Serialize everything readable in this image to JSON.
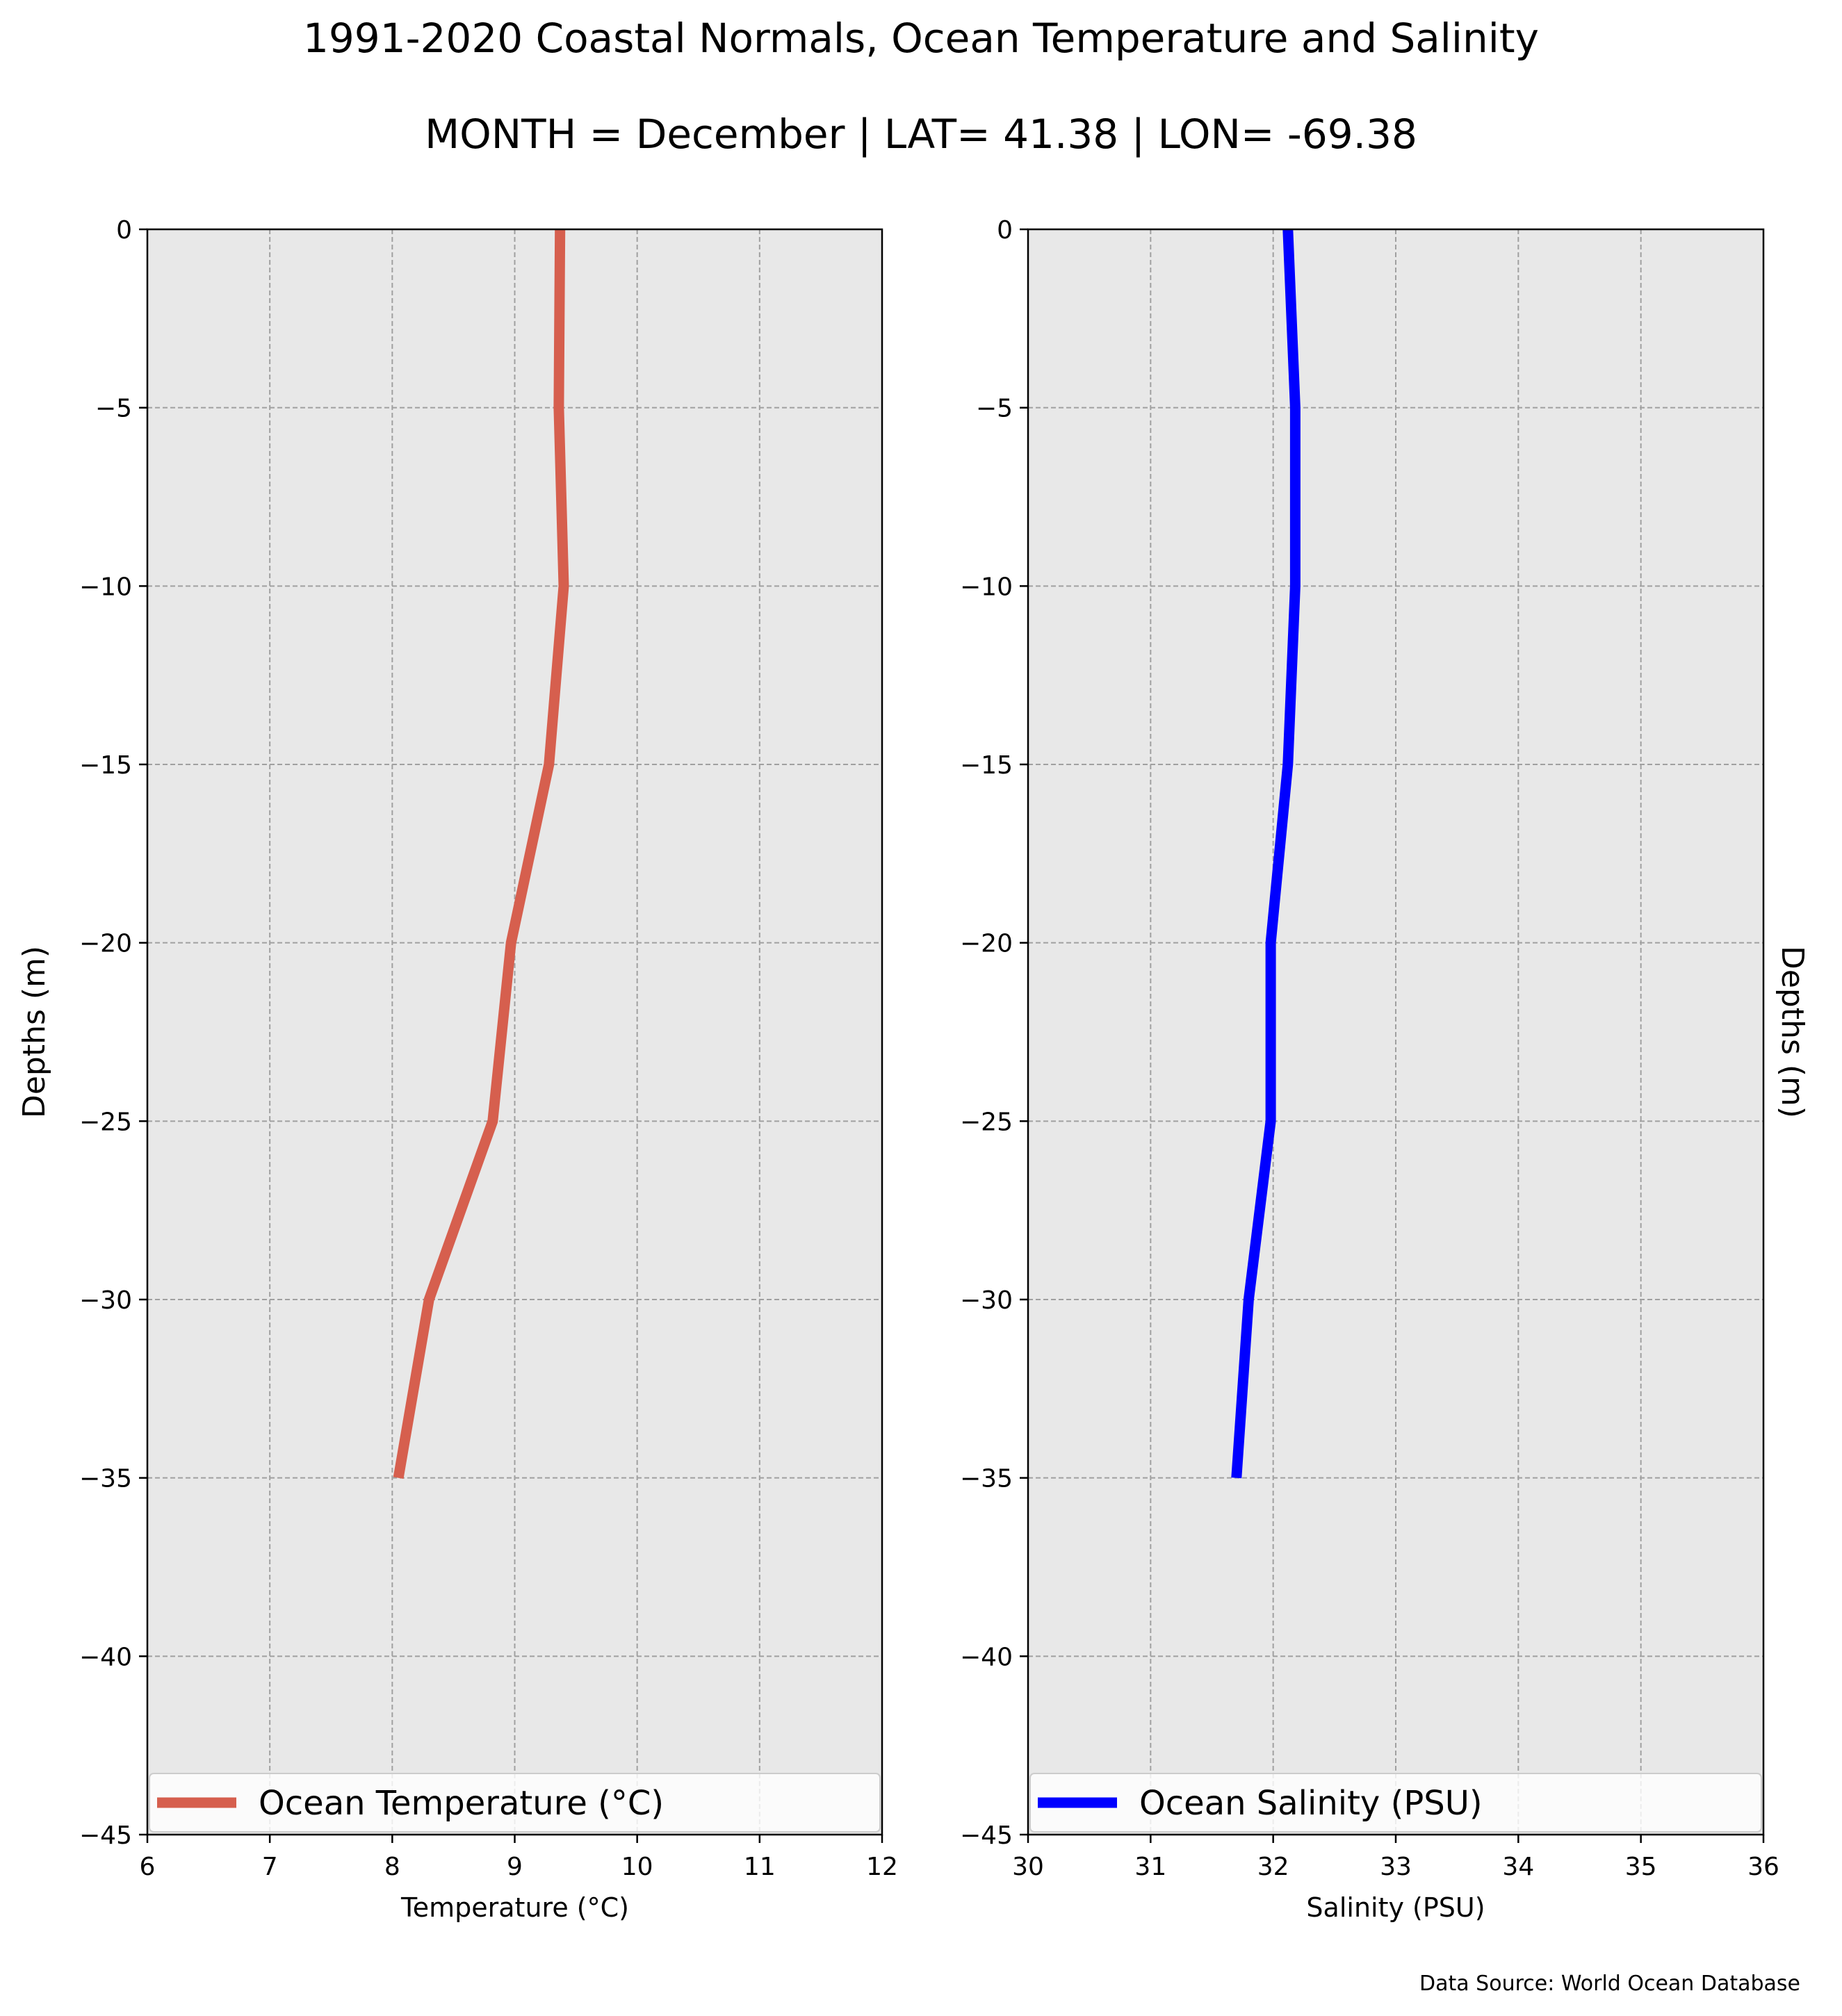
{
  "figure": {
    "title": "1991-2020 Coastal Normals, Ocean Temperature and Salinity",
    "subtitle": "MONTH = December | LAT= 41.38 | LON= -69.38",
    "source_note": "Data Source: World Ocean Database",
    "background_color": "#e8e8e8",
    "grid_color": "#a0a0a0"
  },
  "chart_data": [
    {
      "type": "line",
      "orientation": "profile",
      "xlabel": "Temperature ($^\\circ$C)",
      "xlabel_display": "Temperature (°C)",
      "ylabel": "Depths (m)",
      "xlim": [
        6,
        12
      ],
      "ylim": [
        -45,
        0
      ],
      "xticks": [
        "6",
        "7",
        "8",
        "9",
        "10",
        "11",
        "12"
      ],
      "xtick_values": [
        6,
        7,
        8,
        9,
        10,
        11,
        12
      ],
      "yticks": [
        "0",
        "−5",
        "−10",
        "−15",
        "−20",
        "−25",
        "−30",
        "−35",
        "−40",
        "−45"
      ],
      "ytick_values": [
        0,
        -5,
        -10,
        -15,
        -20,
        -25,
        -30,
        -35,
        -40,
        -45
      ],
      "grid": true,
      "legend_position": "bottom",
      "series": [
        {
          "name": "Ocean Temperature (°C)",
          "color": "#d65f4e",
          "x": [
            9.37,
            9.36,
            9.4,
            9.28,
            8.97,
            8.82,
            8.3,
            8.05
          ],
          "y": [
            0,
            -5,
            -10,
            -15,
            -20,
            -25,
            -30,
            -35
          ]
        }
      ]
    },
    {
      "type": "line",
      "orientation": "profile",
      "xlabel": "Salinity (PSU)",
      "ylabel": "Depths (m)",
      "ylabel_side": "right",
      "xlim": [
        30,
        36
      ],
      "ylim": [
        -45,
        0
      ],
      "xticks": [
        "30",
        "31",
        "32",
        "33",
        "34",
        "35",
        "36"
      ],
      "xtick_values": [
        30,
        31,
        32,
        33,
        34,
        35,
        36
      ],
      "yticks": [
        "0",
        "−5",
        "−10",
        "−15",
        "−20",
        "−25",
        "−30",
        "−35",
        "−40",
        "−45"
      ],
      "ytick_values": [
        0,
        -5,
        -10,
        -15,
        -20,
        -25,
        -30,
        -35,
        -40,
        -45
      ],
      "grid": true,
      "legend_position": "bottom",
      "series": [
        {
          "name": "Ocean Salinity (PSU)",
          "color": "#0000ff",
          "x": [
            32.12,
            32.18,
            32.18,
            32.12,
            31.98,
            31.98,
            31.8,
            31.7
          ],
          "y": [
            0,
            -5,
            -10,
            -15,
            -20,
            -25,
            -30,
            -35
          ]
        }
      ]
    }
  ]
}
